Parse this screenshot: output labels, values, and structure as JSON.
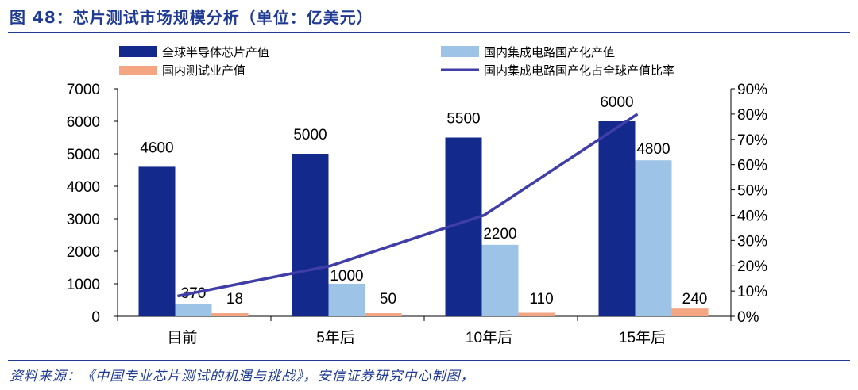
{
  "figure": {
    "title": "图 48：芯片测试市场规模分析（单位：亿美元）",
    "source": "资料来源：《中国专业芯片测试的机遇与挑战》，安信证券研究中心制图，"
  },
  "colors": {
    "global_bar": "#14298c",
    "domestic_ic_bar": "#9dc3e6",
    "test_bar": "#f4a582",
    "ratio_line": "#3f3da8",
    "title": "#1f3a93"
  },
  "chart_data": {
    "type": "bar",
    "categories": [
      "目前",
      "5年后",
      "10年后",
      "15年后"
    ],
    "series": [
      {
        "name": "全球半导体芯片产值",
        "values": [
          4600,
          5000,
          5500,
          6000
        ],
        "axis": "left",
        "kind": "bar",
        "color": "#14298c"
      },
      {
        "name": "国内集成电路国产化产值",
        "values": [
          370,
          1000,
          2200,
          4800
        ],
        "axis": "left",
        "kind": "bar",
        "color": "#9dc3e6"
      },
      {
        "name": "国内测试业产值",
        "values": [
          18,
          50,
          110,
          240
        ],
        "axis": "left",
        "kind": "bar",
        "color": "#f4a582"
      },
      {
        "name": "国内集成电路国产化占全球产值比率",
        "values": [
          8,
          20,
          40,
          80
        ],
        "axis": "right",
        "kind": "line",
        "color": "#3f3da8"
      }
    ],
    "data_labels": [
      [
        "4600",
        "370",
        "18"
      ],
      [
        "5000",
        "1000",
        "50"
      ],
      [
        "5500",
        "2200",
        "110"
      ],
      [
        "6000",
        "4800",
        "240"
      ]
    ],
    "ylim": [
      0,
      7000
    ],
    "y_ticks": [
      "0",
      "1000",
      "2000",
      "3000",
      "4000",
      "5000",
      "6000",
      "7000"
    ],
    "y2lim": [
      0,
      90
    ],
    "y2_ticks": [
      "0%",
      "10%",
      "20%",
      "30%",
      "40%",
      "50%",
      "60%",
      "70%",
      "80%",
      "90%"
    ],
    "legend": {
      "placement": "top",
      "items": [
        "全球半导体芯片产值",
        "国内集成电路国产化产值",
        "国内测试业产值",
        "国内集成电路国产化占全球产值比率"
      ]
    },
    "grid": false
  }
}
